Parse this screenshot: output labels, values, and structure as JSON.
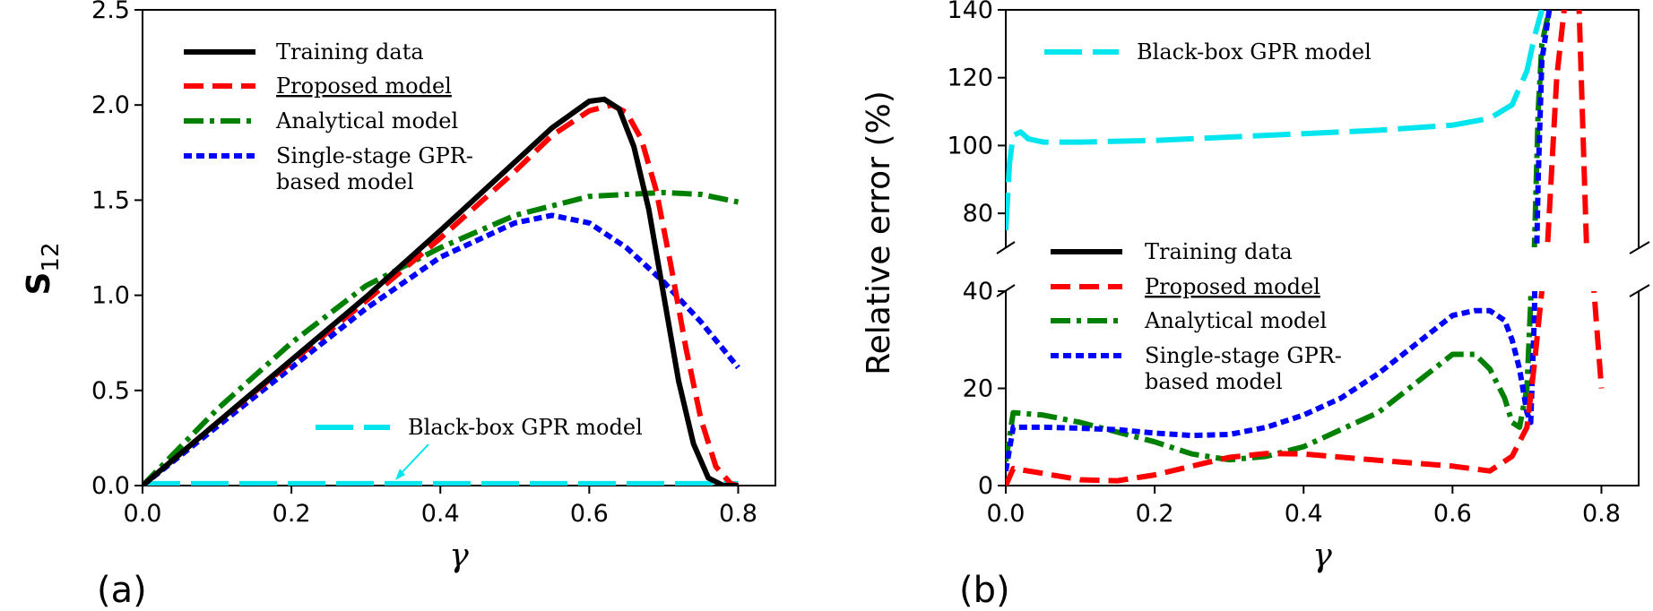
{
  "chart_data": [
    {
      "type": "line",
      "panel_label": "(a)",
      "xlabel": "γ",
      "ylabel": "S",
      "ylabel_subscript": "12",
      "xlim": [
        0.0,
        0.85
      ],
      "ylim": [
        0.0,
        2.5
      ],
      "xticks": [
        "0.0",
        "0.2",
        "0.4",
        "0.6",
        "0.8"
      ],
      "yticks": [
        "0.0",
        "0.5",
        "1.0",
        "1.5",
        "2.0",
        "2.5"
      ],
      "legend_position": "upper-left",
      "series": [
        {
          "name": "Training data",
          "color": "#000000",
          "style": "solid",
          "x": [
            0.0,
            0.1,
            0.2,
            0.3,
            0.4,
            0.5,
            0.55,
            0.6,
            0.62,
            0.64,
            0.66,
            0.68,
            0.7,
            0.72,
            0.74,
            0.76,
            0.78,
            0.8
          ],
          "y": [
            0.0,
            0.33,
            0.66,
            0.99,
            1.34,
            1.7,
            1.88,
            2.02,
            2.03,
            1.98,
            1.78,
            1.45,
            1.0,
            0.55,
            0.22,
            0.04,
            0.0,
            0.0
          ]
        },
        {
          "name": "Proposed model",
          "color": "#ff0000",
          "style": "dashed",
          "x": [
            0.0,
            0.1,
            0.2,
            0.3,
            0.4,
            0.5,
            0.55,
            0.6,
            0.63,
            0.65,
            0.67,
            0.69,
            0.71,
            0.73,
            0.75,
            0.77,
            0.79,
            0.8
          ],
          "y": [
            0.0,
            0.33,
            0.65,
            0.97,
            1.3,
            1.65,
            1.84,
            1.97,
            2.0,
            1.96,
            1.82,
            1.55,
            1.15,
            0.72,
            0.35,
            0.1,
            0.01,
            0.0
          ]
        },
        {
          "name": "Analytical model",
          "color": "#008000",
          "style": "dashdot",
          "x": [
            0.0,
            0.1,
            0.2,
            0.3,
            0.4,
            0.5,
            0.6,
            0.7,
            0.75,
            0.8
          ],
          "y": [
            0.0,
            0.4,
            0.75,
            1.05,
            1.25,
            1.42,
            1.52,
            1.54,
            1.53,
            1.49
          ]
        },
        {
          "name": "Single-stage GPR-\nbased model",
          "label_line1": "Single-stage GPR-",
          "label_line2": "based model",
          "color": "#0000ff",
          "style": "dotted",
          "x": [
            0.0,
            0.1,
            0.2,
            0.3,
            0.4,
            0.5,
            0.55,
            0.6,
            0.65,
            0.7,
            0.75,
            0.8
          ],
          "y": [
            0.0,
            0.31,
            0.62,
            0.93,
            1.2,
            1.38,
            1.42,
            1.38,
            1.25,
            1.07,
            0.86,
            0.62
          ]
        },
        {
          "name": "Black-box GPR model",
          "color": "#00e5ee",
          "style": "longdash",
          "x": [
            0.0,
            0.8
          ],
          "y": [
            0.01,
            0.01
          ]
        }
      ],
      "annotation": {
        "text": "Black-box GPR model",
        "arrow_to": [
          0.34,
          0.01
        ]
      }
    },
    {
      "type": "line",
      "panel_label": "(b)",
      "xlabel": "γ",
      "ylabel": "Relative error (%)",
      "xlim": [
        0.0,
        0.85
      ],
      "broken_axis": true,
      "upper_ylim": [
        70,
        140
      ],
      "lower_ylim": [
        0,
        40
      ],
      "upper_yticks": [
        "80",
        "100",
        "120",
        "140"
      ],
      "lower_yticks": [
        "0",
        "20",
        "40"
      ],
      "xticks": [
        "0.0",
        "0.2",
        "0.4",
        "0.6",
        "0.8"
      ],
      "legend_position": "center-left",
      "series": [
        {
          "name": "Proposed model",
          "color": "#ff0000",
          "style": "dashed",
          "x": [
            0.0,
            0.01,
            0.05,
            0.1,
            0.15,
            0.2,
            0.25,
            0.3,
            0.35,
            0.4,
            0.5,
            0.6,
            0.65,
            0.68,
            0.7,
            0.71,
            0.72,
            0.73,
            0.74,
            0.75,
            0.76,
            0.77,
            0.78,
            0.79,
            0.8
          ],
          "y": [
            0,
            3.5,
            2.5,
            1.2,
            1.0,
            2.2,
            4.0,
            5.8,
            6.6,
            6.5,
            5.2,
            4.0,
            3.0,
            6.0,
            12.0,
            25.0,
            40.0,
            80.0,
            120.0,
            140.0,
            150.0,
            140.0,
            70.0,
            40.0,
            20.0
          ]
        },
        {
          "name": "Analytical model",
          "color": "#008000",
          "style": "dashdot",
          "x": [
            0.0,
            0.01,
            0.05,
            0.1,
            0.15,
            0.2,
            0.25,
            0.3,
            0.35,
            0.4,
            0.5,
            0.55,
            0.6,
            0.63,
            0.65,
            0.67,
            0.68,
            0.69,
            0.7,
            0.705,
            0.71,
            0.715,
            0.72,
            0.73
          ],
          "y": [
            5,
            15.0,
            14.5,
            13.0,
            11.0,
            9.0,
            6.5,
            5.3,
            6.0,
            8.0,
            15.0,
            21.0,
            27.0,
            27.0,
            24.0,
            18.0,
            13.0,
            12.0,
            20.0,
            38.0,
            70.0,
            110.0,
            130.0,
            140.0
          ]
        },
        {
          "name": "Single-stage GPR-\nbased model",
          "label_line1": "Single-stage GPR-",
          "label_line2": "based model",
          "color": "#0000ff",
          "style": "dotted",
          "x": [
            0.0,
            0.01,
            0.05,
            0.1,
            0.15,
            0.2,
            0.25,
            0.3,
            0.35,
            0.4,
            0.45,
            0.5,
            0.55,
            0.6,
            0.63,
            0.65,
            0.67,
            0.68,
            0.69,
            0.7,
            0.705,
            0.71,
            0.715,
            0.72,
            0.73
          ],
          "y": [
            3,
            12.0,
            12.0,
            11.8,
            11.5,
            10.8,
            10.3,
            10.5,
            12.0,
            14.5,
            18.0,
            23.0,
            29.0,
            35.0,
            36.0,
            36.0,
            34.0,
            30.0,
            24.0,
            15.0,
            13.0,
            35.0,
            90.0,
            125.0,
            140.0
          ]
        },
        {
          "name": "Black-box GPR model",
          "color": "#00e5ee",
          "style": "longdash",
          "x": [
            0.0,
            0.005,
            0.01,
            0.02,
            0.03,
            0.05,
            0.1,
            0.2,
            0.3,
            0.4,
            0.5,
            0.6,
            0.65,
            0.68,
            0.7,
            0.71,
            0.72
          ],
          "y": [
            75,
            95,
            103,
            104,
            102,
            101,
            101,
            101.5,
            102.5,
            103.5,
            104.5,
            106,
            108,
            112,
            122,
            132,
            140
          ]
        },
        {
          "name": "Training data",
          "color": "#000000",
          "style": "solid",
          "x": [],
          "y": []
        }
      ],
      "upper_legend": [
        "Black-box GPR model"
      ],
      "lower_legend": [
        "Training data",
        "Proposed model",
        "Analytical model",
        "Single-stage GPR-\nbased model"
      ]
    }
  ]
}
